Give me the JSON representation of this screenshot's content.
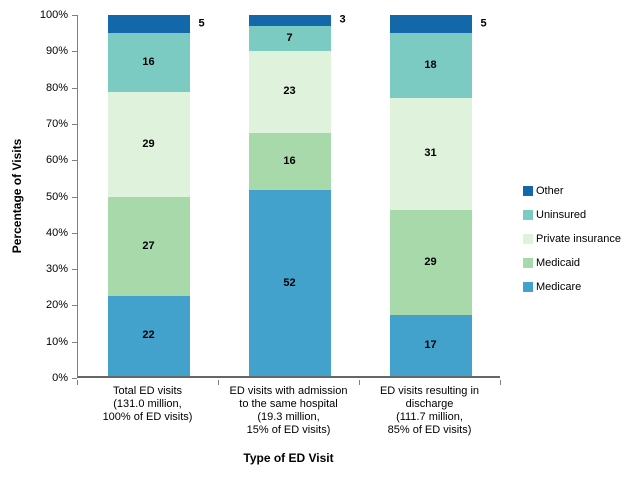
{
  "chart_data": {
    "type": "bar",
    "stacked": true,
    "percent_stacked": true,
    "xlabel": "Type of ED Visit",
    "ylabel": "Percentage of Visits",
    "ylim": [
      0,
      100
    ],
    "ytick_labels": [
      "0%",
      "10%",
      "20%",
      "30%",
      "40%",
      "50%",
      "60%",
      "70%",
      "80%",
      "90%",
      "100%"
    ],
    "grid": false,
    "legend_position": "right",
    "categories": [
      [
        "Total ED visits",
        "(131.0 million,",
        "100% of ED visits)"
      ],
      [
        "ED visits with admission",
        "to the same hospital",
        "(19.3 million,",
        "15% of ED visits)"
      ],
      [
        "ED visits resulting in",
        "discharge",
        "(111.7 million,",
        "85% of ED visits)"
      ]
    ],
    "series": [
      {
        "name": "Medicare",
        "color": "#42A2CB",
        "values": [
          22,
          52,
          17
        ],
        "label_outside": false
      },
      {
        "name": "Medicaid",
        "color": "#A7D9AB",
        "values": [
          27,
          16,
          29
        ],
        "label_outside": false
      },
      {
        "name": "Private insurance",
        "color": "#DFF2DC",
        "values": [
          29,
          23,
          31
        ],
        "label_outside": false
      },
      {
        "name": "Uninsured",
        "color": "#7CCBC3",
        "values": [
          16,
          7,
          18
        ],
        "label_outside": false
      },
      {
        "name": "Other",
        "color": "#1268A9",
        "values": [
          5,
          3,
          5
        ],
        "label_outside": true
      }
    ],
    "legend_order": [
      "Other",
      "Uninsured",
      "Private insurance",
      "Medicaid",
      "Medicare"
    ]
  }
}
